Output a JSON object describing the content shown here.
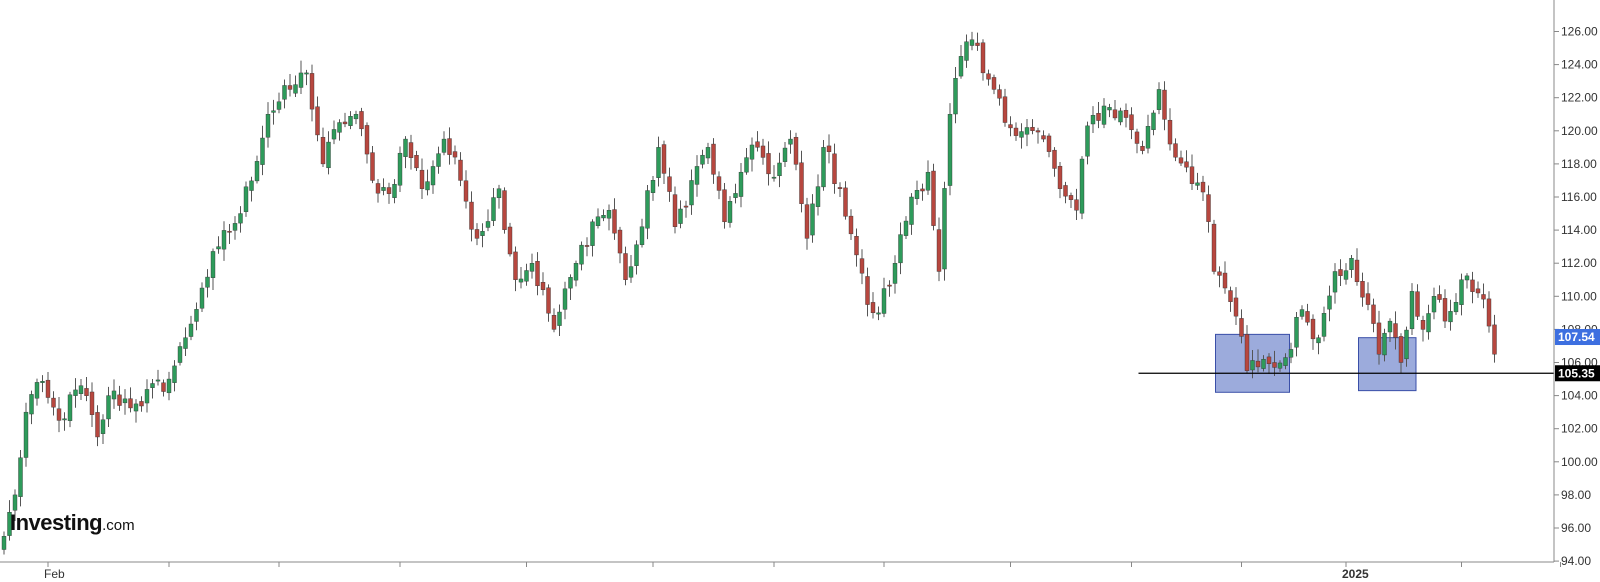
{
  "brand": {
    "name": "Investing",
    "suffix": ".com"
  },
  "colors": {
    "up": "#2e9b5b",
    "down": "#b7473f",
    "wick": "#555555",
    "price_tag": "#3d6fe0",
    "support_tag": "#000000",
    "zone_fill": "#7b8fd0",
    "zone_stroke": "#3a4fa8"
  },
  "chart_data": {
    "type": "candlestick",
    "y_axis": {
      "position": "right",
      "range": [
        94,
        127
      ],
      "tick_labels": [
        "94.00",
        "96.00",
        "98.00",
        "100.00",
        "102.00",
        "104.00",
        "106.00",
        "108.00",
        "110.00",
        "112.00",
        "114.00",
        "116.00",
        "118.00",
        "120.00",
        "122.00",
        "124.00",
        "126.00"
      ]
    },
    "x_axis": {
      "labels": [
        {
          "text": "Feb",
          "index": 8,
          "bold": false
        },
        {
          "text": "2025",
          "index": 244,
          "bold": true
        }
      ],
      "tick_indices": [
        8,
        30,
        50,
        72,
        95,
        118,
        140,
        160,
        183,
        205,
        225,
        244,
        265,
        283
      ]
    },
    "candle_count": 288,
    "anchors": [
      [
        0,
        95.5
      ],
      [
        2,
        98
      ],
      [
        4,
        103
      ],
      [
        6,
        104.8
      ],
      [
        10,
        102.5
      ],
      [
        14,
        104.6
      ],
      [
        17,
        101.5
      ],
      [
        19,
        104
      ],
      [
        24,
        103.5
      ],
      [
        30,
        105
      ],
      [
        33,
        107.5
      ],
      [
        36,
        110.5
      ],
      [
        39,
        113
      ],
      [
        43,
        115
      ],
      [
        48,
        121
      ],
      [
        52,
        122.5
      ],
      [
        55,
        123.5
      ],
      [
        58,
        118
      ],
      [
        61,
        120.5
      ],
      [
        64,
        121
      ],
      [
        67,
        117
      ],
      [
        70,
        116.2
      ],
      [
        73,
        119.5
      ],
      [
        76,
        116.5
      ],
      [
        80,
        119.5
      ],
      [
        83,
        117
      ],
      [
        86,
        113.5
      ],
      [
        90,
        116.5
      ],
      [
        93,
        111
      ],
      [
        96,
        112
      ],
      [
        100,
        108
      ],
      [
        104,
        112
      ],
      [
        107,
        114.5
      ],
      [
        110,
        115.2
      ],
      [
        113,
        111
      ],
      [
        116,
        114.2
      ],
      [
        119,
        119
      ],
      [
        122,
        114.2
      ],
      [
        125,
        117
      ],
      [
        128,
        119
      ],
      [
        131,
        114.5
      ],
      [
        134,
        117.5
      ],
      [
        137,
        119
      ],
      [
        140,
        117.2
      ],
      [
        143,
        119.5
      ],
      [
        146,
        113.5
      ],
      [
        149,
        119
      ],
      [
        152,
        116.5
      ],
      [
        155,
        112.5
      ],
      [
        157,
        109.5
      ],
      [
        159,
        109
      ],
      [
        162,
        112
      ],
      [
        165,
        116
      ],
      [
        168,
        117.5
      ],
      [
        170,
        111.5
      ],
      [
        172,
        121
      ],
      [
        174,
        124.5
      ],
      [
        176,
        125.5
      ],
      [
        178,
        123.5
      ],
      [
        180,
        122.5
      ],
      [
        182,
        120.5
      ],
      [
        186,
        120.2
      ],
      [
        189,
        119.5
      ],
      [
        192,
        116.5
      ],
      [
        195,
        115.2
      ],
      [
        197,
        120.3
      ],
      [
        200,
        121.5
      ],
      [
        204,
        120.8
      ],
      [
        207,
        118.8
      ],
      [
        210,
        122.5
      ],
      [
        212,
        119.2
      ],
      [
        215,
        117.8
      ],
      [
        218,
        116.3
      ],
      [
        220,
        111.5
      ],
      [
        222,
        110.5
      ],
      [
        224,
        108.8
      ],
      [
        226,
        105.5
      ],
      [
        229,
        106.2
      ],
      [
        231,
        105.7
      ],
      [
        233,
        106.3
      ],
      [
        236,
        109.2
      ],
      [
        239,
        107.5
      ],
      [
        242,
        111.5
      ],
      [
        245,
        112.3
      ],
      [
        248,
        109.5
      ],
      [
        250,
        106.5
      ],
      [
        252,
        108.5
      ],
      [
        254,
        106
      ],
      [
        256,
        110.3
      ],
      [
        258,
        108
      ],
      [
        260,
        110
      ],
      [
        262,
        108.5
      ],
      [
        265,
        111
      ],
      [
        268,
        110.2
      ],
      [
        270,
        108.2
      ],
      [
        271,
        106.5
      ]
    ],
    "support_level": {
      "value": 105.35,
      "label": "105.35",
      "from_index": 207
    },
    "last_price": {
      "value": 107.54,
      "label": "107.54"
    },
    "highlight_zones": [
      {
        "from_index": 221,
        "to_index": 233,
        "y_low": 104.2,
        "y_high": 107.7
      },
      {
        "from_index": 247,
        "to_index": 256,
        "y_low": 104.3,
        "y_high": 107.5
      }
    ],
    "grid": false,
    "legend": "none"
  }
}
